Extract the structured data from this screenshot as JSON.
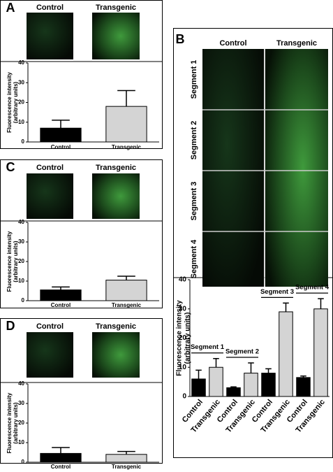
{
  "panels": [
    {
      "label": "A",
      "image_headers": [
        "Control",
        "Transgenic"
      ]
    },
    {
      "label": "B",
      "image_headers": [
        "Control",
        "Transgenic"
      ],
      "row_labels": [
        "Segment 1",
        "Segment 2",
        "Segment 3",
        "Segment 4"
      ]
    },
    {
      "label": "C",
      "image_headers": [
        "Control",
        "Transgenic"
      ]
    },
    {
      "label": "D",
      "image_headers": [
        "Control",
        "Transgenic"
      ]
    }
  ],
  "chart_data": [
    {
      "type": "bar",
      "ylabel": [
        "Fluorescence intensity",
        "(arbitrary units)"
      ],
      "categories": [
        "Control",
        "Transgenic"
      ],
      "values": [
        7,
        18
      ],
      "errors": [
        4,
        8
      ],
      "colors": [
        "#000000",
        "#d4d4d4"
      ],
      "ylim": [
        0,
        40
      ],
      "yticks": [
        0,
        10,
        20,
        30,
        40
      ]
    },
    {
      "type": "bar",
      "ylabel": [
        "Fluorescence intensity",
        "(arbitrary units)"
      ],
      "categories": [
        "Control",
        "Transgenic",
        "Control",
        "Transgenic",
        "Control",
        "Transgenic",
        "Control",
        "Transgenic"
      ],
      "group_labels": [
        "Segment 1",
        "Segment 2",
        "Segment 3",
        "Segment 4"
      ],
      "values": [
        6,
        10,
        3,
        8,
        8,
        29,
        6.5,
        30
      ],
      "errors": [
        3,
        3,
        0.3,
        3.5,
        1.5,
        3,
        0.5,
        3.5
      ],
      "colors": [
        "#000000",
        "#d4d4d4",
        "#000000",
        "#d4d4d4",
        "#000000",
        "#d4d4d4",
        "#000000",
        "#d4d4d4"
      ],
      "ylim": [
        0,
        40
      ],
      "yticks": [
        0,
        10,
        20,
        30,
        40
      ]
    },
    {
      "type": "bar",
      "ylabel": [
        "Fluorescence intensity",
        "(arbitrary units)"
      ],
      "categories": [
        "Control",
        "Transgenic"
      ],
      "values": [
        5.5,
        10.5
      ],
      "errors": [
        1.5,
        2
      ],
      "colors": [
        "#000000",
        "#d4d4d4"
      ],
      "ylim": [
        0,
        40
      ],
      "yticks": [
        0,
        10,
        20,
        30,
        40
      ]
    },
    {
      "type": "bar",
      "ylabel": [
        "Fluorescence intensity",
        "(arbitrary units)"
      ],
      "categories": [
        "Control",
        "Transgenic"
      ],
      "values": [
        4.5,
        4
      ],
      "errors": [
        3,
        1.5
      ],
      "colors": [
        "#000000",
        "#d4d4d4"
      ],
      "ylim": [
        0,
        40
      ],
      "yticks": [
        0,
        10,
        20,
        30,
        40
      ]
    }
  ]
}
